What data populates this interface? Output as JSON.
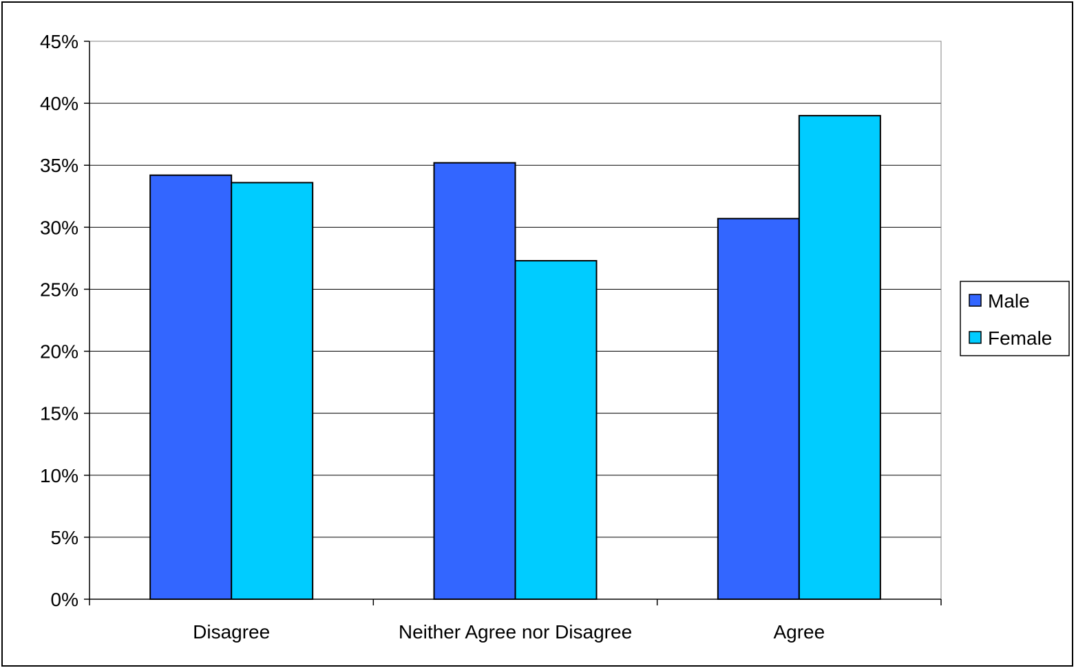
{
  "chart_data": {
    "type": "bar",
    "title": "",
    "xlabel": "",
    "ylabel": "",
    "categories": [
      "Disagree",
      "Neither Agree nor Disagree",
      "Agree"
    ],
    "series": [
      {
        "name": "Male",
        "color": "#3366FF",
        "values": [
          34.2,
          35.2,
          30.7
        ]
      },
      {
        "name": "Female",
        "color": "#00CCFF",
        "values": [
          33.6,
          27.3,
          39.0
        ]
      }
    ],
    "ylim": [
      0,
      45
    ],
    "y_ticks": [
      0,
      5,
      10,
      15,
      20,
      25,
      30,
      35,
      40,
      45
    ],
    "y_tick_labels": [
      "0%",
      "5%",
      "10%",
      "15%",
      "20%",
      "25%",
      "30%",
      "35%",
      "40%",
      "45%"
    ],
    "grid": true,
    "legend_position": "right"
  }
}
